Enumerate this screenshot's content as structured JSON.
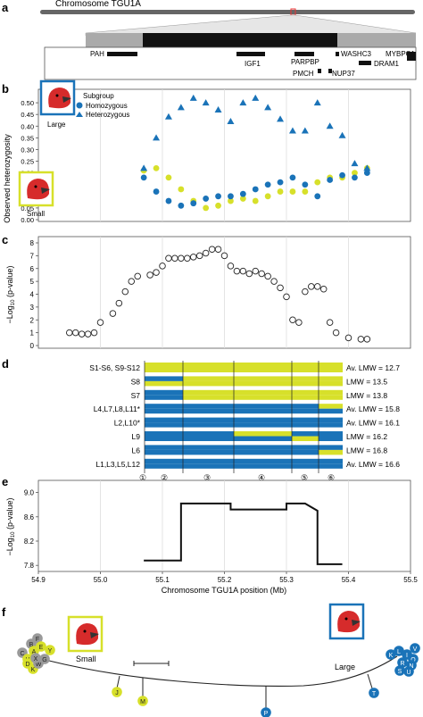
{
  "panel_labels": [
    "a",
    "b",
    "c",
    "d",
    "e",
    "f"
  ],
  "panel_a": {
    "chromosome_label": "Chromosome TGU1A",
    "genes_top": [
      "PAH",
      "WASHC3",
      "MYBPC1"
    ],
    "genes_mid": [
      "IGF1",
      "PARPBP",
      "DRAM1"
    ],
    "genes_bottom": [
      "PMCH",
      "NUP37"
    ]
  },
  "panel_b": {
    "ylabel": "Observed heterozygosity",
    "legend_title": "Subgroup",
    "legend_items": [
      "Homozygous",
      "Heterozygous"
    ],
    "bird_large_label": "Large",
    "bird_small_label": "Small",
    "colors": {
      "homozygous": "#1a73b8",
      "heterozygous": "#1a73b8",
      "small": "#d7e02a",
      "large_frame": "#1a73b8",
      "small_frame": "#d7e02a"
    },
    "yticks": [
      "0.00",
      "0.05",
      "0.10",
      "0.15",
      "0.20",
      "0.25",
      "0.30",
      "0.35",
      "0.40",
      "0.45",
      "0.50"
    ]
  },
  "panel_c": {
    "ylabel_prefix": "−Log",
    "ylabel_sub": "10",
    "ylabel_suffix": " (p-value)",
    "yticks": [
      "0",
      "1",
      "2",
      "3",
      "4",
      "5",
      "6",
      "7",
      "8"
    ]
  },
  "panel_d": {
    "rows": [
      {
        "label": "S1-S6, S9-S12",
        "lmw": "Av. LMW = 12.7"
      },
      {
        "label": "S8",
        "lmw": "LMW = 13.5"
      },
      {
        "label": "S7",
        "lmw": "LMW = 13.8"
      },
      {
        "label": "L4,L7,L8,L11*",
        "lmw": "Av. LMW = 15.8"
      },
      {
        "label": "L2,L10*",
        "lmw": "Av. LMW = 16.1"
      },
      {
        "label": "L9",
        "lmw": "LMW = 16.2"
      },
      {
        "label": "L6",
        "lmw": "LMW = 16.8"
      },
      {
        "label": "L1,L3,L5,L12",
        "lmw": "Av. LMW = 16.6"
      }
    ],
    "segments": [
      "①",
      "②",
      "③",
      "④",
      "⑤",
      "⑥"
    ]
  },
  "panel_e": {
    "ylabel_prefix": "−Log",
    "ylabel_sub": "10",
    "ylabel_suffix": " (p-value)",
    "yticks": [
      "7.8",
      "8.2",
      "8.6",
      "9.0"
    ],
    "xlabel": "Chromosome TGU1A position (Mb)",
    "xticks": [
      "54.9",
      "55.0",
      "55.1",
      "55.2",
      "55.3",
      "55.4",
      "55.5"
    ]
  },
  "panel_f": {
    "small_label": "Small",
    "large_label": "Large",
    "small_cluster": [
      "F",
      "B",
      "A",
      "E",
      "C",
      "H",
      "D",
      "K",
      "W",
      "X",
      "G",
      "Y"
    ],
    "large_cluster": [
      "K",
      "L",
      "I",
      "O",
      "R",
      "N",
      "S",
      "U",
      "V"
    ],
    "branch_nodes": [
      "J",
      "M",
      "P",
      "T"
    ]
  },
  "chart_data": [
    {
      "type": "scatter",
      "ylabel": "Observed heterozygosity",
      "ylim": [
        0,
        0.55
      ],
      "series": [
        {
          "name": "Heterozygous (Large)",
          "x": [
            55.07,
            55.09,
            55.11,
            55.13,
            55.15,
            55.17,
            55.19,
            55.21,
            55.23,
            55.25,
            55.27,
            55.29,
            55.31,
            55.33,
            55.35,
            55.37,
            55.39,
            55.41,
            55.43
          ],
          "values": [
            0.22,
            0.35,
            0.44,
            0.48,
            0.52,
            0.5,
            0.47,
            0.42,
            0.5,
            0.52,
            0.48,
            0.43,
            0.38,
            0.38,
            0.5,
            0.4,
            0.36,
            0.24,
            0.22
          ]
        },
        {
          "name": "Homozygous (Large)",
          "x": [
            55.07,
            55.09,
            55.11,
            55.13,
            55.15,
            55.17,
            55.19,
            55.21,
            55.23,
            55.25,
            55.27,
            55.29,
            55.31,
            55.33,
            55.35,
            55.37,
            55.39,
            55.41,
            55.43
          ],
          "values": [
            0.18,
            0.12,
            0.08,
            0.06,
            0.07,
            0.09,
            0.1,
            0.1,
            0.11,
            0.13,
            0.15,
            0.16,
            0.18,
            0.15,
            0.1,
            0.17,
            0.19,
            0.18,
            0.2
          ]
        },
        {
          "name": "Homozygous (Small)",
          "x": [
            55.07,
            55.09,
            55.11,
            55.13,
            55.15,
            55.17,
            55.19,
            55.21,
            55.23,
            55.25,
            55.27,
            55.29,
            55.31,
            55.33,
            55.35,
            55.37,
            55.39,
            55.41,
            55.43
          ],
          "values": [
            0.21,
            0.22,
            0.18,
            0.13,
            0.08,
            0.05,
            0.06,
            0.08,
            0.09,
            0.08,
            0.1,
            0.12,
            0.12,
            0.12,
            0.16,
            0.18,
            0.18,
            0.2,
            0.22
          ]
        }
      ]
    },
    {
      "type": "scatter",
      "ylim": [
        0,
        8
      ],
      "series": [
        {
          "name": "",
          "x": [
            54.95,
            54.96,
            54.97,
            54.98,
            54.99,
            55.0,
            55.02,
            55.03,
            55.04,
            55.05,
            55.06,
            55.08,
            55.09,
            55.1,
            55.11,
            55.12,
            55.13,
            55.14,
            55.15,
            55.16,
            55.17,
            55.18,
            55.19,
            55.2,
            55.21,
            55.22,
            55.23,
            55.24,
            55.25,
            55.26,
            55.27,
            55.28,
            55.29,
            55.3,
            55.31,
            55.32,
            55.33,
            55.34,
            55.35,
            55.36,
            55.37,
            55.38,
            55.4,
            55.42,
            55.43
          ],
          "values": [
            1.0,
            1.0,
            0.9,
            0.9,
            1.0,
            1.8,
            2.5,
            3.3,
            4.2,
            5.0,
            5.4,
            5.5,
            5.7,
            6.2,
            6.8,
            6.8,
            6.8,
            6.8,
            6.9,
            7.0,
            7.2,
            7.5,
            7.5,
            7.0,
            6.2,
            5.8,
            5.8,
            5.6,
            5.8,
            5.6,
            5.4,
            5.0,
            4.5,
            3.8,
            2.0,
            1.8,
            4.2,
            4.6,
            4.6,
            4.4,
            1.8,
            1.0,
            0.6,
            0.5,
            0.5
          ]
        }
      ]
    },
    {
      "type": "line",
      "xlabel": "Chromosome TGU1A position (Mb)",
      "xlim": [
        54.9,
        55.5
      ],
      "ylim": [
        7.7,
        9.2
      ],
      "x": [
        55.07,
        55.13,
        55.13,
        55.21,
        55.21,
        55.3,
        55.3,
        55.33,
        55.35,
        55.35,
        55.39
      ],
      "values": [
        7.88,
        7.88,
        8.82,
        8.82,
        8.72,
        8.72,
        8.82,
        8.82,
        8.7,
        7.82,
        7.82
      ]
    }
  ]
}
